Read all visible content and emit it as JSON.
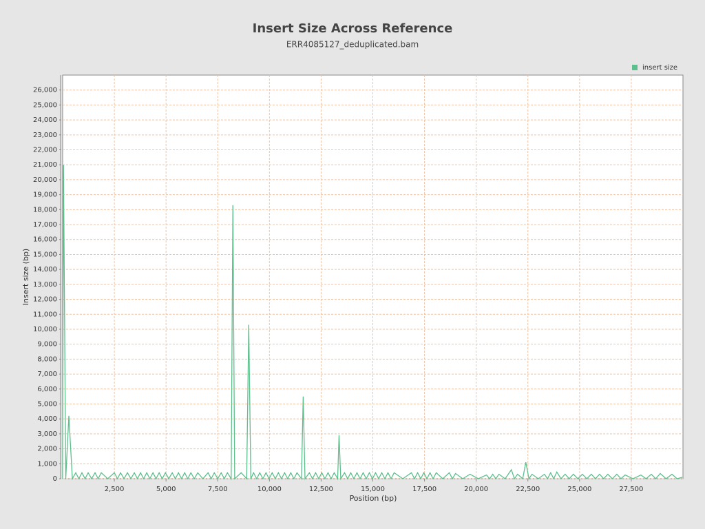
{
  "chart_data": {
    "type": "line",
    "title": "Insert Size Across Reference",
    "subtitle": "ERR4085127_deduplicated.bam",
    "xlabel": "Position (bp)",
    "ylabel": "Insert size (bp)",
    "legend": "top-right",
    "grid": true,
    "xlim": [
      0,
      30000
    ],
    "ylim": [
      0,
      27000
    ],
    "xticks": [
      {
        "value": 2500,
        "label": "2,500"
      },
      {
        "value": 5000,
        "label": "5,000"
      },
      {
        "value": 7500,
        "label": "7,500"
      },
      {
        "value": 10000,
        "label": "10,000"
      },
      {
        "value": 12500,
        "label": "12,500"
      },
      {
        "value": 15000,
        "label": "15,000"
      },
      {
        "value": 17500,
        "label": "17,500"
      },
      {
        "value": 20000,
        "label": "20,000"
      },
      {
        "value": 22500,
        "label": "22,500"
      },
      {
        "value": 25000,
        "label": "25,000"
      },
      {
        "value": 27500,
        "label": "27,500"
      }
    ],
    "yticks": [
      0,
      {
        "value": 1000,
        "label": "1,000"
      },
      {
        "value": 2000,
        "label": "2,000"
      },
      {
        "value": 3000,
        "label": "3,000"
      },
      {
        "value": 4000,
        "label": "4,000"
      },
      {
        "value": 5000,
        "label": "5,000"
      },
      {
        "value": 6000,
        "label": "6,000"
      },
      {
        "value": 7000,
        "label": "7,000"
      },
      {
        "value": 8000,
        "label": "8,000"
      },
      {
        "value": 9000,
        "label": "9,000"
      },
      {
        "value": 10000,
        "label": "10,000"
      },
      {
        "value": 11000,
        "label": "11,000"
      },
      {
        "value": 12000,
        "label": "12,000"
      },
      {
        "value": 13000,
        "label": "13,000"
      },
      {
        "value": 14000,
        "label": "14,000"
      },
      {
        "value": 15000,
        "label": "15,000"
      },
      {
        "value": 16000,
        "label": "16,000"
      },
      {
        "value": 17000,
        "label": "17,000"
      },
      {
        "value": 18000,
        "label": "18,000"
      },
      {
        "value": 19000,
        "label": "19,000"
      },
      {
        "value": 20000,
        "label": "20,000"
      },
      {
        "value": 21000,
        "label": "21,000"
      },
      {
        "value": 22000,
        "label": "22,000"
      },
      {
        "value": 23000,
        "label": "23,000"
      },
      {
        "value": 24000,
        "label": "24,000"
      },
      {
        "value": 25000,
        "label": "25,000"
      },
      {
        "value": 26000,
        "label": "26,000"
      }
    ],
    "x": [
      0,
      40,
      150,
      300,
      470,
      633,
      783,
      933,
      1083,
      1233,
      1400,
      1567,
      1717,
      1867,
      2180,
      2500,
      2650,
      2800,
      2967,
      3133,
      3300,
      3467,
      3617,
      3767,
      3917,
      4067,
      4217,
      4367,
      4517,
      4667,
      4817,
      4967,
      5133,
      5300,
      5450,
      5600,
      5750,
      5900,
      6050,
      6200,
      6367,
      6533,
      6783,
      7033,
      7183,
      7333,
      7500,
      7667,
      7817,
      7967,
      8150,
      8233,
      8320,
      8633,
      8900,
      9000,
      9100,
      9233,
      9383,
      9533,
      9683,
      9833,
      9983,
      10133,
      10283,
      10433,
      10583,
      10733,
      10883,
      11033,
      11183,
      11333,
      11550,
      11633,
      11720,
      11933,
      12083,
      12233,
      12383,
      12533,
      12683,
      12833,
      12983,
      13133,
      13300,
      13367,
      13450,
      13633,
      13783,
      13933,
      14083,
      14233,
      14383,
      14533,
      14683,
      14833,
      14983,
      15133,
      15283,
      15433,
      15583,
      15733,
      15883,
      16033,
      16450,
      16867,
      17017,
      17167,
      17317,
      17467,
      17617,
      17767,
      17917,
      18067,
      18383,
      18700,
      18850,
      19000,
      19350,
      19700,
      20100,
      20500,
      20650,
      20800,
      20950,
      21100,
      21400,
      21700,
      21850,
      22000,
      22250,
      22400,
      22550,
      22700,
      23000,
      23300,
      23450,
      23600,
      23750,
      23900,
      24100,
      24300,
      24500,
      24700,
      24917,
      25133,
      25350,
      25567,
      25767,
      25967,
      26167,
      26367,
      26583,
      26800,
      27000,
      27200,
      27583,
      27967,
      28217,
      28467,
      28683,
      28900,
      29183,
      29467,
      29717,
      29967
    ],
    "series": [
      {
        "name": "insert size",
        "color": "#5cbf8c",
        "values": [
          0,
          21000,
          0,
          4200,
          0,
          400,
          0,
          400,
          0,
          400,
          0,
          400,
          0,
          400,
          0,
          400,
          0,
          400,
          0,
          400,
          0,
          400,
          0,
          400,
          0,
          400,
          0,
          400,
          0,
          400,
          0,
          400,
          0,
          400,
          0,
          400,
          0,
          400,
          0,
          400,
          0,
          400,
          0,
          400,
          0,
          400,
          0,
          400,
          0,
          400,
          0,
          18300,
          0,
          400,
          0,
          10300,
          0,
          400,
          0,
          400,
          0,
          400,
          0,
          400,
          0,
          400,
          0,
          400,
          0,
          400,
          0,
          400,
          0,
          5500,
          0,
          400,
          0,
          400,
          0,
          400,
          0,
          400,
          0,
          400,
          0,
          2900,
          0,
          400,
          0,
          400,
          0,
          400,
          0,
          400,
          0,
          400,
          0,
          400,
          0,
          400,
          0,
          400,
          0,
          400,
          0,
          400,
          0,
          400,
          0,
          400,
          0,
          400,
          0,
          400,
          0,
          400,
          0,
          350,
          0,
          300,
          0,
          250,
          0,
          300,
          0,
          300,
          0,
          600,
          0,
          300,
          0,
          1100,
          0,
          300,
          0,
          300,
          0,
          400,
          0,
          450,
          0,
          300,
          0,
          300,
          0,
          300,
          0,
          300,
          0,
          300,
          0,
          300,
          0,
          300,
          0,
          250,
          0,
          250,
          0,
          300,
          0,
          350,
          0,
          300,
          0,
          100
        ]
      }
    ]
  }
}
